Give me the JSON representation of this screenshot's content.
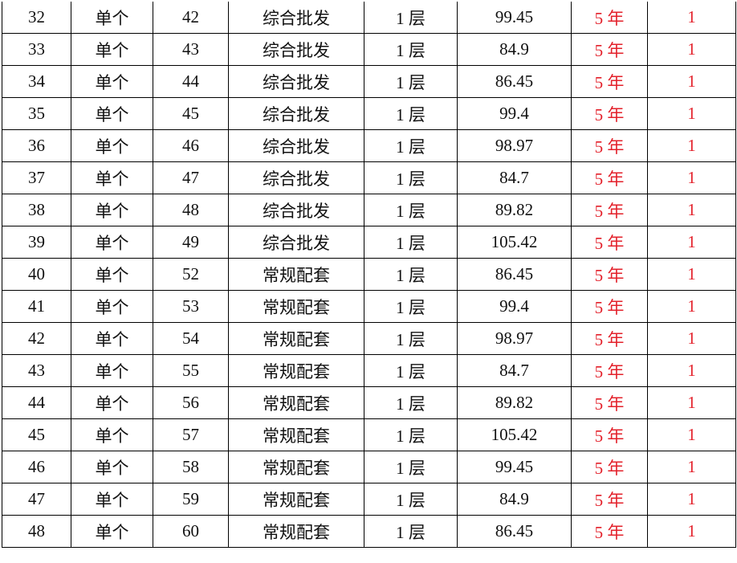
{
  "colors": {
    "accent_red": "#e3202a"
  },
  "rows": [
    [
      "32",
      "单个",
      "42",
      "综合批发",
      "1 层",
      "99.45",
      "5 年",
      "1"
    ],
    [
      "33",
      "单个",
      "43",
      "综合批发",
      "1 层",
      "84.9",
      "5 年",
      "1"
    ],
    [
      "34",
      "单个",
      "44",
      "综合批发",
      "1 层",
      "86.45",
      "5 年",
      "1"
    ],
    [
      "35",
      "单个",
      "45",
      "综合批发",
      "1 层",
      "99.4",
      "5 年",
      "1"
    ],
    [
      "36",
      "单个",
      "46",
      "综合批发",
      "1 层",
      "98.97",
      "5 年",
      "1"
    ],
    [
      "37",
      "单个",
      "47",
      "综合批发",
      "1 层",
      "84.7",
      "5 年",
      "1"
    ],
    [
      "38",
      "单个",
      "48",
      "综合批发",
      "1 层",
      "89.82",
      "5 年",
      "1"
    ],
    [
      "39",
      "单个",
      "49",
      "综合批发",
      "1 层",
      "105.42",
      "5 年",
      "1"
    ],
    [
      "40",
      "单个",
      "52",
      "常规配套",
      "1 层",
      "86.45",
      "5 年",
      "1"
    ],
    [
      "41",
      "单个",
      "53",
      "常规配套",
      "1 层",
      "99.4",
      "5 年",
      "1"
    ],
    [
      "42",
      "单个",
      "54",
      "常规配套",
      "1 层",
      "98.97",
      "5 年",
      "1"
    ],
    [
      "43",
      "单个",
      "55",
      "常规配套",
      "1 层",
      "84.7",
      "5 年",
      "1"
    ],
    [
      "44",
      "单个",
      "56",
      "常规配套",
      "1 层",
      "89.82",
      "5 年",
      "1"
    ],
    [
      "45",
      "单个",
      "57",
      "常规配套",
      "1 层",
      "105.42",
      "5 年",
      "1"
    ],
    [
      "46",
      "单个",
      "58",
      "常规配套",
      "1 层",
      "99.45",
      "5 年",
      "1"
    ],
    [
      "47",
      "单个",
      "59",
      "常规配套",
      "1 层",
      "84.9",
      "5 年",
      "1"
    ],
    [
      "48",
      "单个",
      "60",
      "常规配套",
      "1 层",
      "86.45",
      "5 年",
      "1"
    ]
  ]
}
